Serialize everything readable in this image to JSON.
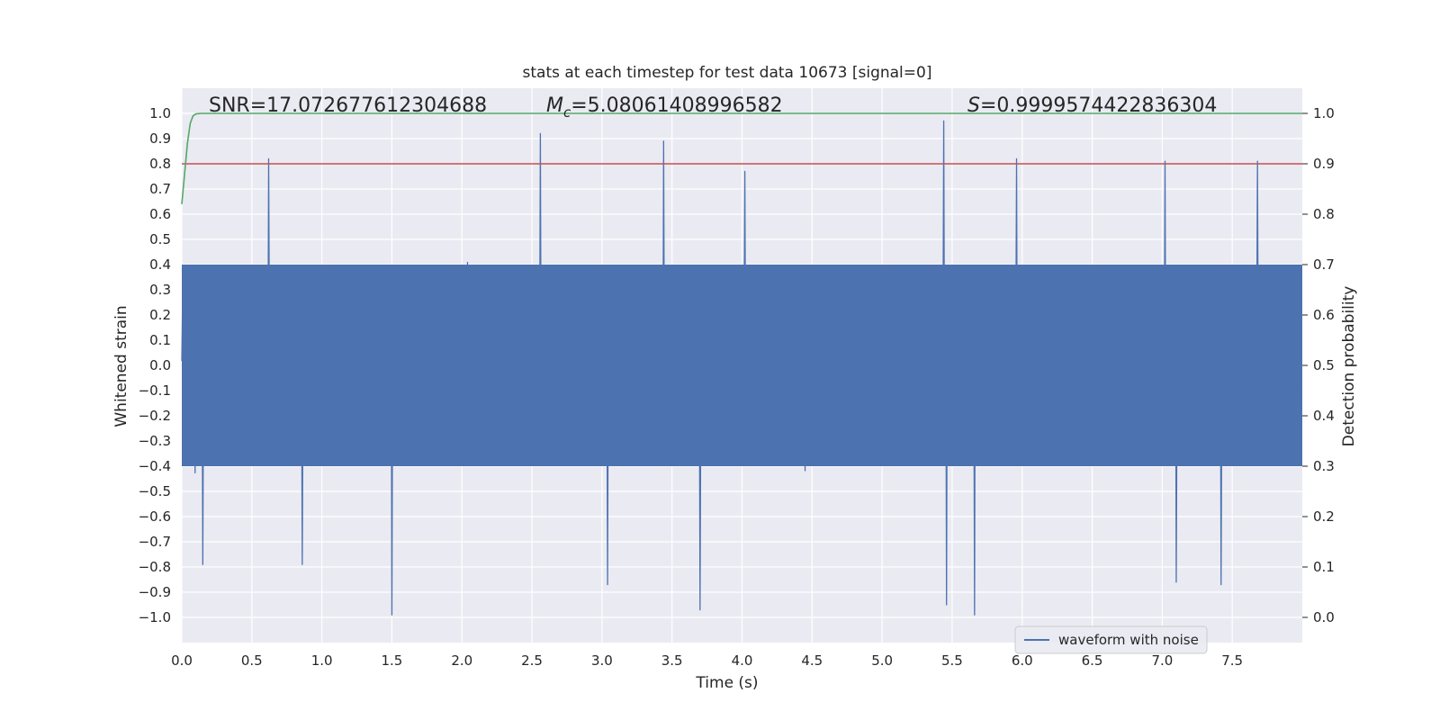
{
  "chart_data": {
    "type": "line",
    "title": "stats at each timestep for test data 10673 [signal=0]",
    "xlabel": "Time (s)",
    "ylabel_left": "Whitened strain",
    "ylabel_right": "Detection probability",
    "xlim": [
      0,
      8
    ],
    "ylim_left": [
      -1.1,
      1.1
    ],
    "ylim_right": [
      -0.05,
      1.05
    ],
    "x_ticks": [
      0.0,
      0.5,
      1.0,
      1.5,
      2.0,
      2.5,
      3.0,
      3.5,
      4.0,
      4.5,
      5.0,
      5.5,
      6.0,
      6.5,
      7.0,
      7.5
    ],
    "x_tick_labels": [
      "0.0",
      "0.5",
      "1.0",
      "1.5",
      "2.0",
      "2.5",
      "3.0",
      "3.5",
      "4.0",
      "4.5",
      "5.0",
      "5.5",
      "6.0",
      "6.5",
      "7.0",
      "7.5"
    ],
    "y_left_ticks": [
      1.0,
      0.9,
      0.8,
      0.7,
      0.6,
      0.5,
      0.4,
      0.3,
      0.2,
      0.1,
      0.0,
      -0.1,
      -0.2,
      -0.3,
      -0.4,
      -0.5,
      -0.6,
      -0.7,
      -0.8,
      -0.9,
      -1.0
    ],
    "y_left_tick_labels": [
      "1.0",
      "0.9",
      "0.8",
      "0.7",
      "0.6",
      "0.5",
      "0.4",
      "0.3",
      "0.2",
      "0.1",
      "0.0",
      "−0.1",
      "−0.2",
      "−0.3",
      "−0.4",
      "−0.5",
      "−0.6",
      "−0.7",
      "−0.8",
      "−0.9",
      "−1.0"
    ],
    "y_right_ticks": [
      1.0,
      0.9,
      0.8,
      0.7,
      0.6,
      0.5,
      0.4,
      0.3,
      0.2,
      0.1,
      0.0
    ],
    "y_right_tick_labels": [
      "1.0",
      "0.9",
      "0.8",
      "0.7",
      "0.6",
      "0.5",
      "0.4",
      "0.3",
      "0.2",
      "0.1",
      "0.0"
    ],
    "grid": true,
    "annotations": {
      "snr": "SNR=17.072677612304688",
      "mc_symbol": "M",
      "mc_sub": "c",
      "mc_value": "=5.08061408996582",
      "s_symbol": "S",
      "s_value": "=0.9999574422836304"
    },
    "legend": {
      "placement": "lower-right",
      "entries": [
        "waveform with noise"
      ]
    },
    "series": [
      {
        "name": "waveform with noise",
        "axis": "left",
        "color": "#4c72b0",
        "style": "dense noise, dt approx 0.005 s",
        "envelope": {
          "core_low": -0.4,
          "core_high": 0.4,
          "typical_min": -0.75,
          "typical_max": 0.7
        },
        "peaks_x": [
          0.62,
          2.56,
          3.44,
          4.02,
          5.44,
          5.96,
          7.02,
          7.68
        ],
        "peaks_y": [
          0.82,
          0.92,
          0.89,
          0.77,
          0.97,
          0.82,
          0.81,
          0.81
        ],
        "troughs_x": [
          0.15,
          0.86,
          1.5,
          3.04,
          3.7,
          5.46,
          5.66,
          7.1,
          7.42
        ],
        "troughs_y": [
          -0.79,
          -0.79,
          -0.99,
          -0.87,
          -0.97,
          -0.95,
          -0.99,
          -0.86,
          -0.87
        ]
      },
      {
        "axis": "right",
        "color": "#55a868",
        "x": [
          0.0,
          0.02,
          0.04,
          0.06,
          0.08,
          0.1,
          0.14,
          0.2,
          8.0
        ],
        "y": [
          0.82,
          0.88,
          0.94,
          0.98,
          0.995,
          0.999,
          1.0,
          1.0,
          1.0
        ]
      },
      {
        "axis": "right",
        "color": "#c44e52",
        "x": [
          0.0,
          8.0
        ],
        "y": [
          0.9,
          0.9
        ]
      }
    ]
  },
  "colors": {
    "plot_background": "#eaeaf2",
    "grid": "#ffffff",
    "waveform": "#4c72b0",
    "probability": "#55a868",
    "threshold": "#c44e52"
  }
}
